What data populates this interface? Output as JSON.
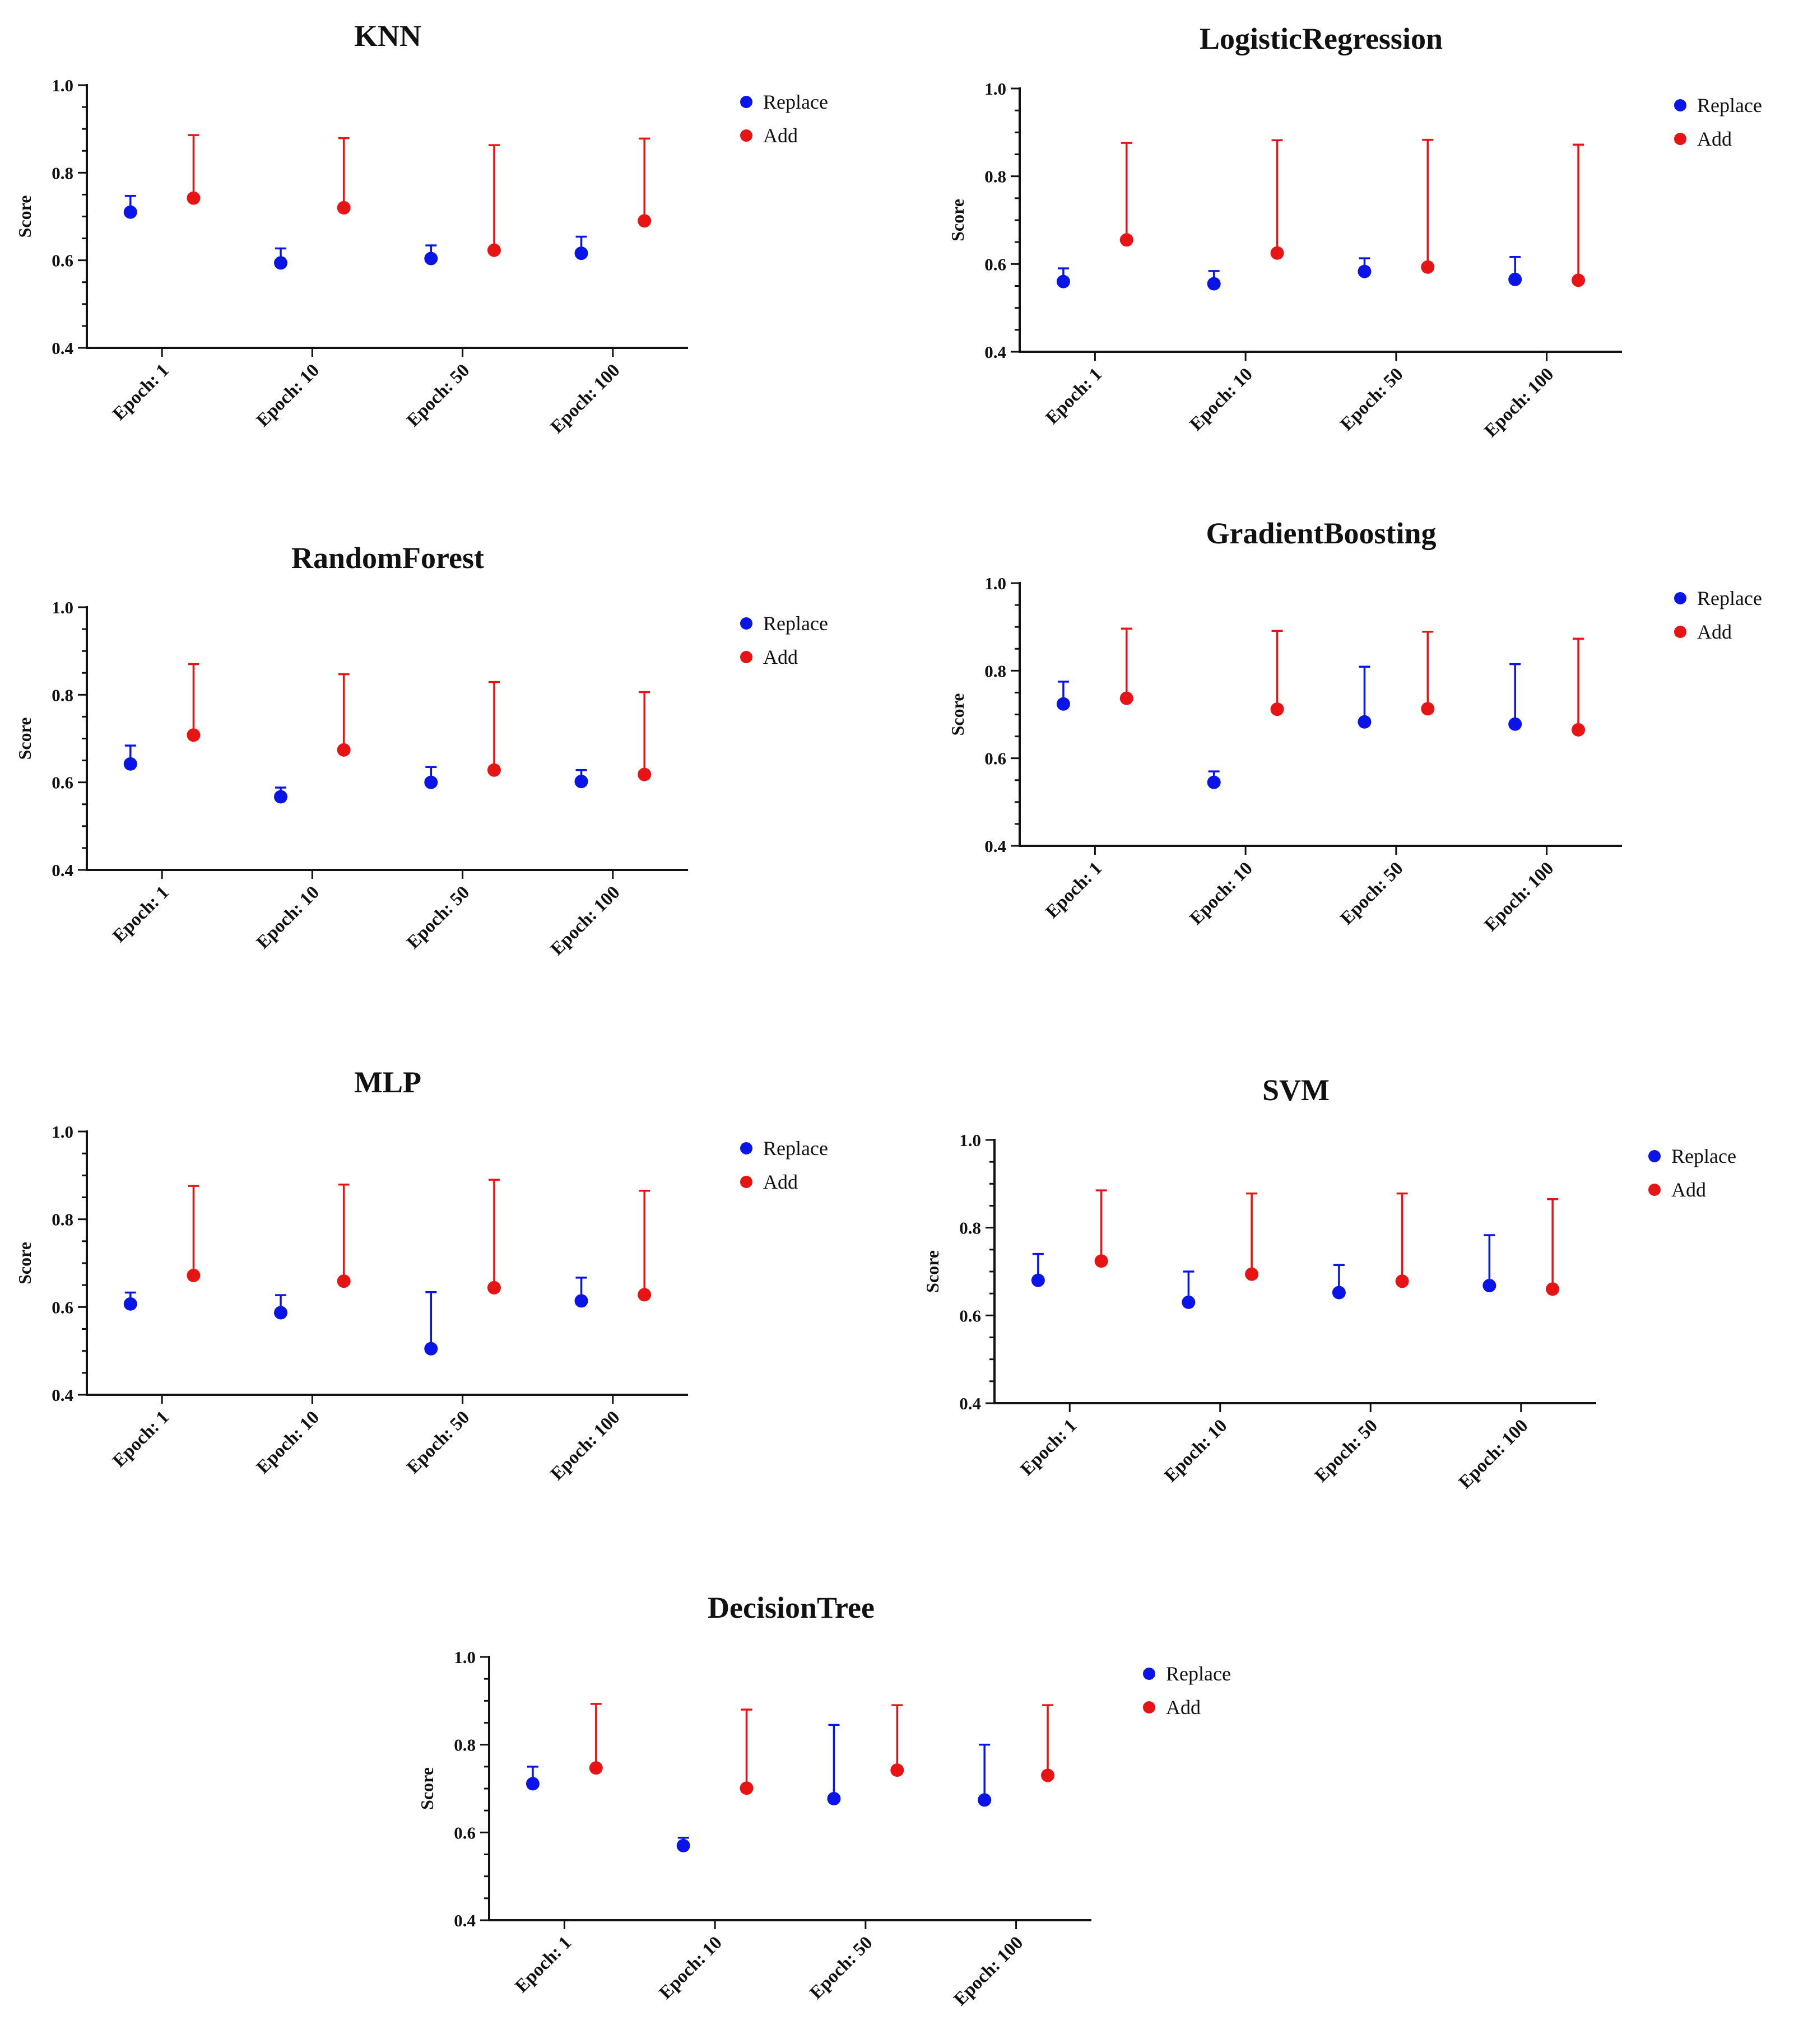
{
  "figure": {
    "legend_entries": [
      "Replace",
      "Add"
    ],
    "colors": {
      "replace": "#0a14e6",
      "add": "#e61414",
      "axis": "#111111"
    }
  },
  "chart_data": [
    {
      "type": "scatter",
      "title": "KNN",
      "xlabel": "",
      "ylabel": "Score",
      "ylim": [
        0.4,
        1.0
      ],
      "yticks": [
        "0.4",
        "0.6",
        "0.8",
        "1.0"
      ],
      "categories": [
        "Epoch: 1",
        "Epoch: 10",
        "Epoch: 50",
        "Epoch: 100"
      ],
      "legend_position": "top-right",
      "series": [
        {
          "name": "Replace",
          "color": "#0a14e6",
          "values": [
            0.71,
            0.594,
            0.604,
            0.616
          ],
          "upper": [
            0.747,
            0.627,
            0.634,
            0.654
          ]
        },
        {
          "name": "Add",
          "color": "#e61414",
          "values": [
            0.742,
            0.72,
            0.623,
            0.69
          ],
          "upper": [
            0.886,
            0.879,
            0.863,
            0.878
          ]
        }
      ]
    },
    {
      "type": "scatter",
      "title": "LogisticRegression",
      "xlabel": "",
      "ylabel": "Score",
      "ylim": [
        0.4,
        1.0
      ],
      "yticks": [
        "0.4",
        "0.6",
        "0.8",
        "1.0"
      ],
      "categories": [
        "Epoch: 1",
        "Epoch: 10",
        "Epoch: 50",
        "Epoch: 100"
      ],
      "legend_position": "top-right",
      "series": [
        {
          "name": "Replace",
          "color": "#0a14e6",
          "values": [
            0.56,
            0.555,
            0.583,
            0.565
          ],
          "upper": [
            0.59,
            0.584,
            0.613,
            0.616
          ]
        },
        {
          "name": "Add",
          "color": "#e61414",
          "values": [
            0.655,
            0.625,
            0.593,
            0.563
          ],
          "upper": [
            0.876,
            0.882,
            0.883,
            0.872
          ]
        }
      ]
    },
    {
      "type": "scatter",
      "title": "RandomForest",
      "xlabel": "",
      "ylabel": "Score",
      "ylim": [
        0.4,
        1.0
      ],
      "yticks": [
        "0.4",
        "0.6",
        "0.8",
        "1.0"
      ],
      "categories": [
        "Epoch: 1",
        "Epoch: 10",
        "Epoch: 50",
        "Epoch: 100"
      ],
      "legend_position": "top-right",
      "series": [
        {
          "name": "Replace",
          "color": "#0a14e6",
          "values": [
            0.642,
            0.567,
            0.6,
            0.602
          ],
          "upper": [
            0.684,
            0.588,
            0.635,
            0.628
          ]
        },
        {
          "name": "Add",
          "color": "#e61414",
          "values": [
            0.708,
            0.674,
            0.628,
            0.618
          ],
          "upper": [
            0.87,
            0.847,
            0.829,
            0.806
          ]
        }
      ]
    },
    {
      "type": "scatter",
      "title": "GradientBoosting",
      "xlabel": "",
      "ylabel": "Score",
      "ylim": [
        0.4,
        1.0
      ],
      "yticks": [
        "0.4",
        "0.6",
        "0.8",
        "1.0"
      ],
      "categories": [
        "Epoch: 1",
        "Epoch: 10",
        "Epoch: 50",
        "Epoch: 100"
      ],
      "legend_position": "top-right",
      "series": [
        {
          "name": "Replace",
          "color": "#0a14e6",
          "values": [
            0.724,
            0.545,
            0.683,
            0.678
          ],
          "upper": [
            0.775,
            0.57,
            0.809,
            0.815
          ]
        },
        {
          "name": "Add",
          "color": "#e61414",
          "values": [
            0.737,
            0.712,
            0.713,
            0.665
          ],
          "upper": [
            0.896,
            0.891,
            0.889,
            0.873
          ]
        }
      ]
    },
    {
      "type": "scatter",
      "title": "MLP",
      "xlabel": "",
      "ylabel": "Score",
      "ylim": [
        0.4,
        1.0
      ],
      "yticks": [
        "0.4",
        "0.6",
        "0.8",
        "1.0"
      ],
      "categories": [
        "Epoch: 1",
        "Epoch: 10",
        "Epoch: 50",
        "Epoch: 100"
      ],
      "legend_position": "top-right",
      "series": [
        {
          "name": "Replace",
          "color": "#0a14e6",
          "values": [
            0.607,
            0.587,
            0.505,
            0.614
          ],
          "upper": [
            0.633,
            0.627,
            0.634,
            0.667
          ]
        },
        {
          "name": "Add",
          "color": "#e61414",
          "values": [
            0.672,
            0.659,
            0.644,
            0.628
          ],
          "upper": [
            0.876,
            0.879,
            0.89,
            0.865
          ]
        }
      ]
    },
    {
      "type": "scatter",
      "title": "SVM",
      "xlabel": "",
      "ylabel": "Score",
      "ylim": [
        0.4,
        1.0
      ],
      "yticks": [
        "0.4",
        "0.6",
        "0.8",
        "1.0"
      ],
      "categories": [
        "Epoch: 1",
        "Epoch: 10",
        "Epoch: 50",
        "Epoch: 100"
      ],
      "legend_position": "top-right",
      "series": [
        {
          "name": "Replace",
          "color": "#0a14e6",
          "values": [
            0.68,
            0.63,
            0.652,
            0.668
          ],
          "upper": [
            0.74,
            0.7,
            0.715,
            0.783
          ]
        },
        {
          "name": "Add",
          "color": "#e61414",
          "values": [
            0.724,
            0.694,
            0.678,
            0.66
          ],
          "upper": [
            0.885,
            0.878,
            0.878,
            0.865
          ]
        }
      ]
    },
    {
      "type": "scatter",
      "title": "DecisionTree",
      "xlabel": "",
      "ylabel": "Score",
      "ylim": [
        0.4,
        1.0
      ],
      "yticks": [
        "0.4",
        "0.6",
        "0.8",
        "1.0"
      ],
      "categories": [
        "Epoch: 1",
        "Epoch: 10",
        "Epoch: 50",
        "Epoch: 100"
      ],
      "legend_position": "top-right",
      "series": [
        {
          "name": "Replace",
          "color": "#0a14e6",
          "values": [
            0.711,
            0.57,
            0.677,
            0.674
          ],
          "upper": [
            0.75,
            0.588,
            0.845,
            0.8
          ]
        },
        {
          "name": "Add",
          "color": "#e61414",
          "values": [
            0.747,
            0.701,
            0.742,
            0.73
          ],
          "upper": [
            0.893,
            0.88,
            0.89,
            0.89
          ]
        }
      ]
    }
  ]
}
